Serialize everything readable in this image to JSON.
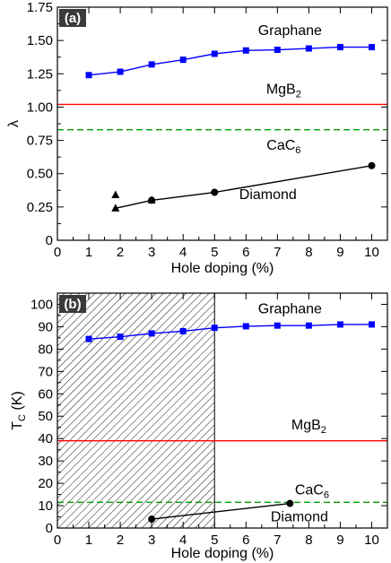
{
  "chart_data": [
    {
      "type": "line",
      "panel_label": "(a)",
      "xlabel": "Hole doping (%)",
      "ylabel": "λ",
      "xlim": [
        0,
        10.5
      ],
      "ylim": [
        0,
        1.75
      ],
      "xticks": [
        0,
        1,
        2,
        3,
        4,
        5,
        6,
        7,
        8,
        9,
        10
      ],
      "yticks": [
        "0",
        "0.25",
        "0.50",
        "0.75",
        "1.00",
        "1.25",
        "1.50",
        "1.75"
      ],
      "ytick_values": [
        0,
        0.25,
        0.5,
        0.75,
        1.0,
        1.25,
        1.5,
        1.75
      ],
      "series": [
        {
          "name": "Graphane",
          "color": "#0000ff",
          "marker": "square",
          "line": "solid",
          "x": [
            1,
            2,
            3,
            4,
            5,
            6,
            7,
            8,
            9,
            10
          ],
          "y": [
            1.24,
            1.265,
            1.32,
            1.355,
            1.4,
            1.425,
            1.43,
            1.44,
            1.45,
            1.45
          ]
        },
        {
          "name": "Diamond",
          "color": "#000000",
          "marker": "circle",
          "line": "solid",
          "x": [
            3,
            5,
            10
          ],
          "y": [
            0.3,
            0.36,
            0.56
          ]
        },
        {
          "color": "#000000",
          "marker": "triangle",
          "line": "none",
          "x": [
            1.85
          ],
          "y": [
            0.34
          ]
        },
        {
          "color": "#000000",
          "marker": "triangle",
          "line": "solid",
          "x": [
            1.85,
            3
          ],
          "y": [
            0.24,
            0.3
          ]
        }
      ],
      "hlines": [
        {
          "name": "MgB2",
          "y": 1.02,
          "color": "#ff0000",
          "style": "solid"
        },
        {
          "name": "CaC6",
          "y": 0.83,
          "color": "#00a000",
          "style": "dashed"
        }
      ],
      "annotations": [
        {
          "base": "Graphane",
          "sub": "",
          "x": 7.4,
          "y": 1.54
        },
        {
          "base": "MgB",
          "sub": "2",
          "x": 7.2,
          "y": 1.1
        },
        {
          "base": "CaC",
          "sub": "6",
          "x": 7.2,
          "y": 0.68
        },
        {
          "base": "Diamond",
          "sub": "",
          "x": 6.7,
          "y": 0.31
        }
      ]
    },
    {
      "type": "line",
      "panel_label": "(b)",
      "xlabel": "Hole doping (%)",
      "ylabel_base": "T",
      "ylabel_sub": "C",
      "ylabel_unit": " (K)",
      "xlim": [
        0,
        10.5
      ],
      "ylim": [
        0,
        105
      ],
      "xticks": [
        0,
        1,
        2,
        3,
        4,
        5,
        6,
        7,
        8,
        9,
        10
      ],
      "yticks": [
        0,
        10,
        20,
        30,
        40,
        50,
        60,
        70,
        80,
        90,
        100
      ],
      "hatched_region": [
        0,
        5
      ],
      "series": [
        {
          "name": "Graphane",
          "color": "#0000ff",
          "marker": "square",
          "line": "solid",
          "x": [
            1,
            2,
            3,
            4,
            5,
            6,
            7,
            8,
            9,
            10
          ],
          "y": [
            84.5,
            85.5,
            87.0,
            88.0,
            89.5,
            90.2,
            90.5,
            90.5,
            91.0,
            91.0
          ]
        },
        {
          "name": "Diamond",
          "color": "#000000",
          "marker": "circle",
          "line": "solid",
          "x": [
            3,
            7.4
          ],
          "y": [
            4,
            11
          ]
        }
      ],
      "hlines": [
        {
          "name": "MgB2",
          "y": 39,
          "color": "#ff0000",
          "style": "solid"
        },
        {
          "name": "CaC6",
          "y": 11.5,
          "color": "#00a000",
          "style": "dashed"
        }
      ],
      "annotations": [
        {
          "base": "Graphane",
          "sub": "",
          "x": 7.4,
          "y": 96
        },
        {
          "base": "MgB",
          "sub": "2",
          "x": 8.0,
          "y": 44
        },
        {
          "base": "CaC",
          "sub": "6",
          "x": 8.1,
          "y": 15
        },
        {
          "base": "Diamond",
          "sub": "",
          "x": 7.7,
          "y": 3
        }
      ]
    }
  ]
}
